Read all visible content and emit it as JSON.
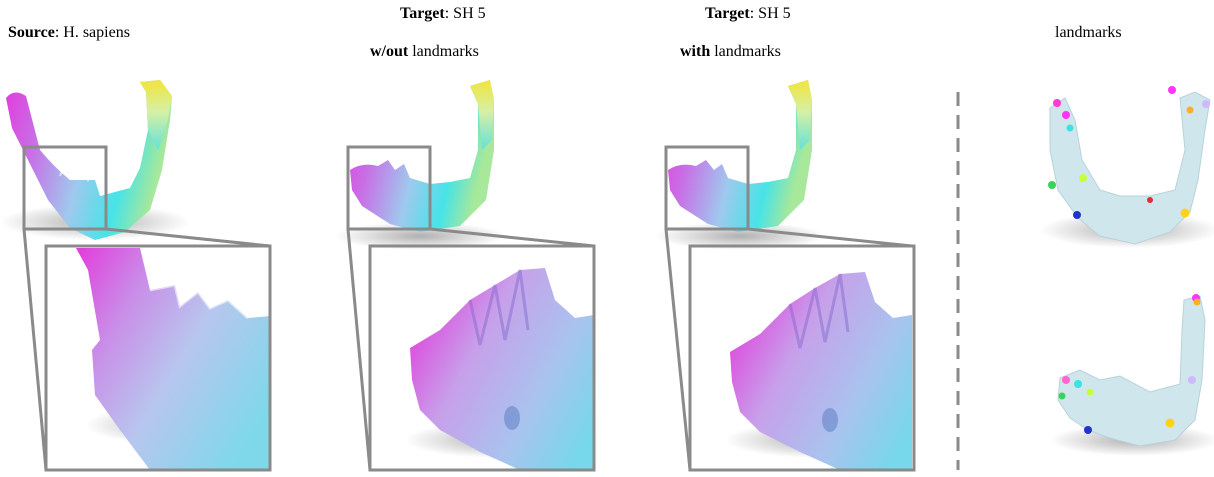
{
  "panels": {
    "source": {
      "label_bold": "Source",
      "label_rest": ": H. sapiens"
    },
    "target_without": {
      "line1_bold": "Target",
      "line1_rest": ": SH 5",
      "line2_bold": "w/out",
      "line2_rest": " landmarks"
    },
    "target_with": {
      "line1_bold": "Target",
      "line1_rest": ": SH 5",
      "line2_bold": "with",
      "line2_rest": " landmarks"
    },
    "landmarks": {
      "label": "landmarks"
    }
  },
  "colors": {
    "zoom_frame": "#8a8a8a",
    "divider": "#8a8a8a",
    "bone_landmark_view": "#cfe6ec",
    "gradient_magenta": "#e23bdc",
    "gradient_cyan": "#47e3e8",
    "gradient_yellow": "#f2e43b"
  },
  "icons": {
    "mandible": "jaw-bone-render",
    "landmark": "sphere-marker"
  }
}
